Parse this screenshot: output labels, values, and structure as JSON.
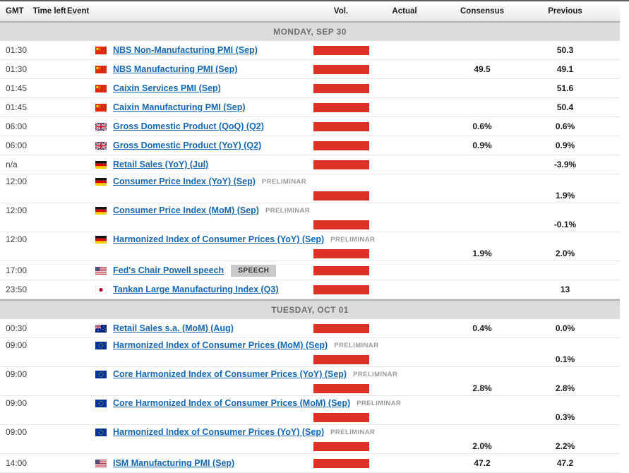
{
  "columns": {
    "gmt": "GMT",
    "time_left": "Time left",
    "event": "Event",
    "vol": "Vol.",
    "actual": "Actual",
    "consensus": "Consensus",
    "previous": "Previous"
  },
  "colors": {
    "volatility_bar": "#dc3226",
    "event_link": "#1567b3",
    "section_background": "#dcdcdc"
  },
  "sections": [
    {
      "title": "MONDAY, SEP 30",
      "rows": [
        {
          "gmt": "01:30",
          "country": "CN",
          "flag_icon": "china-flag-icon",
          "event": "NBS Non-Manufacturing PMI (Sep)",
          "tag": null,
          "tall": false,
          "actual": "",
          "consensus": "",
          "previous": "50.3"
        },
        {
          "gmt": "01:30",
          "country": "CN",
          "flag_icon": "china-flag-icon",
          "event": "NBS Manufacturing PMI (Sep)",
          "tag": null,
          "tall": false,
          "actual": "",
          "consensus": "49.5",
          "previous": "49.1"
        },
        {
          "gmt": "01:45",
          "country": "CN",
          "flag_icon": "china-flag-icon",
          "event": "Caixin Services PMI (Sep)",
          "tag": null,
          "tall": false,
          "actual": "",
          "consensus": "",
          "previous": "51.6"
        },
        {
          "gmt": "01:45",
          "country": "CN",
          "flag_icon": "china-flag-icon",
          "event": "Caixin Manufacturing PMI (Sep)",
          "tag": null,
          "tall": false,
          "actual": "",
          "consensus": "",
          "previous": "50.4"
        },
        {
          "gmt": "06:00",
          "country": "GB",
          "flag_icon": "uk-flag-icon",
          "event": "Gross Domestic Product (QoQ) (Q2)",
          "tag": null,
          "tall": false,
          "actual": "",
          "consensus": "0.6%",
          "previous": "0.6%"
        },
        {
          "gmt": "06:00",
          "country": "GB",
          "flag_icon": "uk-flag-icon",
          "event": "Gross Domestic Product (YoY) (Q2)",
          "tag": null,
          "tall": false,
          "actual": "",
          "consensus": "0.9%",
          "previous": "0.9%"
        },
        {
          "gmt": "n/a",
          "country": "DE",
          "flag_icon": "germany-flag-icon",
          "event": "Retail Sales (YoY) (Jul)",
          "tag": null,
          "tall": false,
          "actual": "",
          "consensus": "",
          "previous": "-3.9%"
        },
        {
          "gmt": "12:00",
          "country": "DE",
          "flag_icon": "germany-flag-icon",
          "event": "Consumer Price Index (YoY) (Sep)",
          "tag": "PRELIMINAR",
          "tall": true,
          "actual": "",
          "consensus": "",
          "previous": "1.9%"
        },
        {
          "gmt": "12:00",
          "country": "DE",
          "flag_icon": "germany-flag-icon",
          "event": "Consumer Price Index (MoM) (Sep)",
          "tag": "PRELIMINAR",
          "tall": true,
          "actual": "",
          "consensus": "",
          "previous": "-0.1%"
        },
        {
          "gmt": "12:00",
          "country": "DE",
          "flag_icon": "germany-flag-icon",
          "event": "Harmonized Index of Consumer Prices (YoY) (Sep)",
          "tag": "PRELIMINAR",
          "tall": true,
          "actual": "",
          "consensus": "1.9%",
          "previous": "2.0%"
        },
        {
          "gmt": "17:00",
          "country": "US",
          "flag_icon": "usa-flag-icon",
          "event": "Fed's Chair Powell speech",
          "tag": "SPEECH",
          "tall": false,
          "actual": "",
          "consensus": "",
          "previous": ""
        },
        {
          "gmt": "23:50",
          "country": "JP",
          "flag_icon": "japan-flag-icon",
          "event": "Tankan Large Manufacturing Index (Q3)",
          "tag": null,
          "tall": false,
          "actual": "",
          "consensus": "",
          "previous": "13"
        }
      ]
    },
    {
      "title": "TUESDAY, OCT 01",
      "rows": [
        {
          "gmt": "00:30",
          "country": "AU",
          "flag_icon": "australia-flag-icon",
          "event": "Retail Sales s.a. (MoM) (Aug)",
          "tag": null,
          "tall": false,
          "actual": "",
          "consensus": "0.4%",
          "previous": "0.0%"
        },
        {
          "gmt": "09:00",
          "country": "EU",
          "flag_icon": "eu-flag-icon",
          "event": "Harmonized Index of Consumer Prices (MoM) (Sep)",
          "tag": "PRELIMINAR",
          "tall": true,
          "actual": "",
          "consensus": "",
          "previous": "0.1%"
        },
        {
          "gmt": "09:00",
          "country": "EU",
          "flag_icon": "eu-flag-icon",
          "event": "Core Harmonized Index of Consumer Prices (YoY) (Sep)",
          "tag": "PRELIMINAR",
          "tall": true,
          "actual": "",
          "consensus": "2.8%",
          "previous": "2.8%"
        },
        {
          "gmt": "09:00",
          "country": "EU",
          "flag_icon": "eu-flag-icon",
          "event": "Core Harmonized Index of Consumer Prices (MoM) (Sep)",
          "tag": "PRELIMINAR",
          "tall": true,
          "actual": "",
          "consensus": "",
          "previous": "0.3%"
        },
        {
          "gmt": "09:00",
          "country": "EU",
          "flag_icon": "eu-flag-icon",
          "event": "Harmonized Index of Consumer Prices (YoY) (Sep)",
          "tag": "PRELIMINAR",
          "tall": true,
          "actual": "",
          "consensus": "2.0%",
          "previous": "2.2%"
        },
        {
          "gmt": "14:00",
          "country": "US",
          "flag_icon": "usa-flag-icon",
          "event": "ISM Manufacturing PMI (Sep)",
          "tag": null,
          "tall": false,
          "actual": "",
          "consensus": "47.2",
          "previous": "47.2"
        }
      ]
    }
  ]
}
